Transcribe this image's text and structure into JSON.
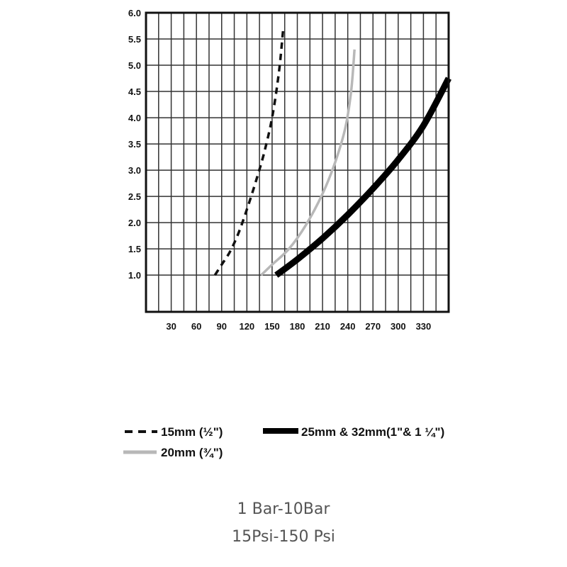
{
  "colors": {
    "frame": "#111111",
    "grid": "#333333",
    "series_15mm": "#111111",
    "series_20mm": "#b8b8b8",
    "series_25mm": "#000000",
    "caption": "#555555"
  },
  "chart_data": {
    "type": "line",
    "title": "",
    "xlabel": "",
    "ylabel": "",
    "xlim": [
      0,
      360
    ],
    "ylim": [
      0.3,
      6.0
    ],
    "xticks": [
      30,
      60,
      90,
      120,
      150,
      180,
      210,
      240,
      270,
      300,
      330
    ],
    "yticks": [
      1.0,
      1.5,
      2.0,
      2.5,
      3.0,
      3.5,
      4.0,
      4.5,
      5.0,
      5.5,
      6.0
    ],
    "xtick_labels": [
      "30",
      "60",
      "90",
      "120",
      "150",
      "180",
      "210",
      "240",
      "270",
      "300",
      "330"
    ],
    "ytick_labels": [
      "1.0",
      "1.5",
      "2.0",
      "2.5",
      "3.0",
      "3.5",
      "4.0",
      "4.5",
      "5.0",
      "5.5",
      "6.0"
    ],
    "grid": true,
    "legend_position": "below",
    "series": [
      {
        "name": "15mm (½\")",
        "style": "dashed",
        "color": "#111111",
        "x": [
          82,
          90,
          100,
          110,
          120,
          130,
          140,
          150,
          158,
          163
        ],
        "y": [
          1.0,
          1.2,
          1.45,
          1.8,
          2.25,
          2.75,
          3.3,
          4.0,
          4.85,
          5.65
        ]
      },
      {
        "name": "20mm (¾\")",
        "style": "solid",
        "color": "#b8b8b8",
        "x": [
          137,
          150,
          170,
          190,
          210,
          225,
          237,
          244,
          248
        ],
        "y": [
          1.0,
          1.2,
          1.5,
          1.95,
          2.55,
          3.15,
          3.8,
          4.5,
          5.3
        ]
      },
      {
        "name": "25mm & 32mm(1\"& 1 ¼\")",
        "style": "thick",
        "color": "#000000",
        "x": [
          155,
          180,
          210,
          240,
          270,
          300,
          330,
          360
        ],
        "y": [
          1.0,
          1.3,
          1.7,
          2.15,
          2.65,
          3.2,
          3.85,
          4.75
        ]
      }
    ]
  },
  "captions": {
    "line1": "1 Bar-10Bar",
    "line2": "15Psi-150 Psi"
  }
}
